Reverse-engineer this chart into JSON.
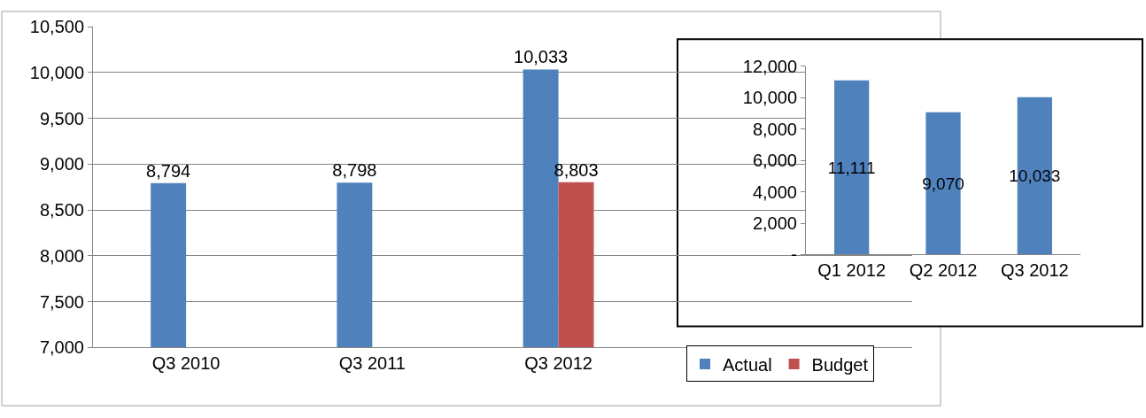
{
  "chart_data": [
    {
      "type": "bar",
      "categories": [
        "Q3 2010",
        "Q3 2011",
        "Q3 2012"
      ],
      "series": [
        {
          "name": "Actual",
          "color": "#4f81bd",
          "values": [
            8794,
            8798,
            10033
          ],
          "value_labels": [
            "8,794",
            "8,798",
            "10,033"
          ]
        },
        {
          "name": "Budget",
          "color": "#c0504d",
          "values": [
            null,
            null,
            8803
          ],
          "value_labels": [
            null,
            null,
            "8,803"
          ]
        }
      ],
      "ylim": [
        7000,
        10500
      ],
      "yticks": [
        {
          "value": 7000,
          "label": "7,000"
        },
        {
          "value": 7500,
          "label": "7,500"
        },
        {
          "value": 8000,
          "label": "8,000"
        },
        {
          "value": 8500,
          "label": "8,500"
        },
        {
          "value": 9000,
          "label": "9,000"
        },
        {
          "value": 9500,
          "label": "9,500"
        },
        {
          "value": 10000,
          "label": "10,000"
        },
        {
          "value": 10500,
          "label": "10,500"
        }
      ],
      "grid": "y",
      "legend": "bottom right"
    },
    {
      "type": "bar",
      "categories": [
        "Q1 2012",
        "Q2 2012",
        "Q3 2012"
      ],
      "color": "#4f81bd",
      "values": [
        11111,
        9070,
        10033
      ],
      "value_labels": [
        "11,111",
        "9,070",
        "10,033"
      ],
      "ylim": [
        0,
        12000
      ],
      "yticks": [
        {
          "value": 0,
          "label": "-"
        },
        {
          "value": 2000,
          "label": "2,000"
        },
        {
          "value": 4000,
          "label": "4,000"
        },
        {
          "value": 6000,
          "label": "6,000"
        },
        {
          "value": 8000,
          "label": "8,000"
        },
        {
          "value": 10000,
          "label": "10,000"
        },
        {
          "value": 12000,
          "label": "12,000"
        }
      ],
      "grid": "y"
    }
  ]
}
